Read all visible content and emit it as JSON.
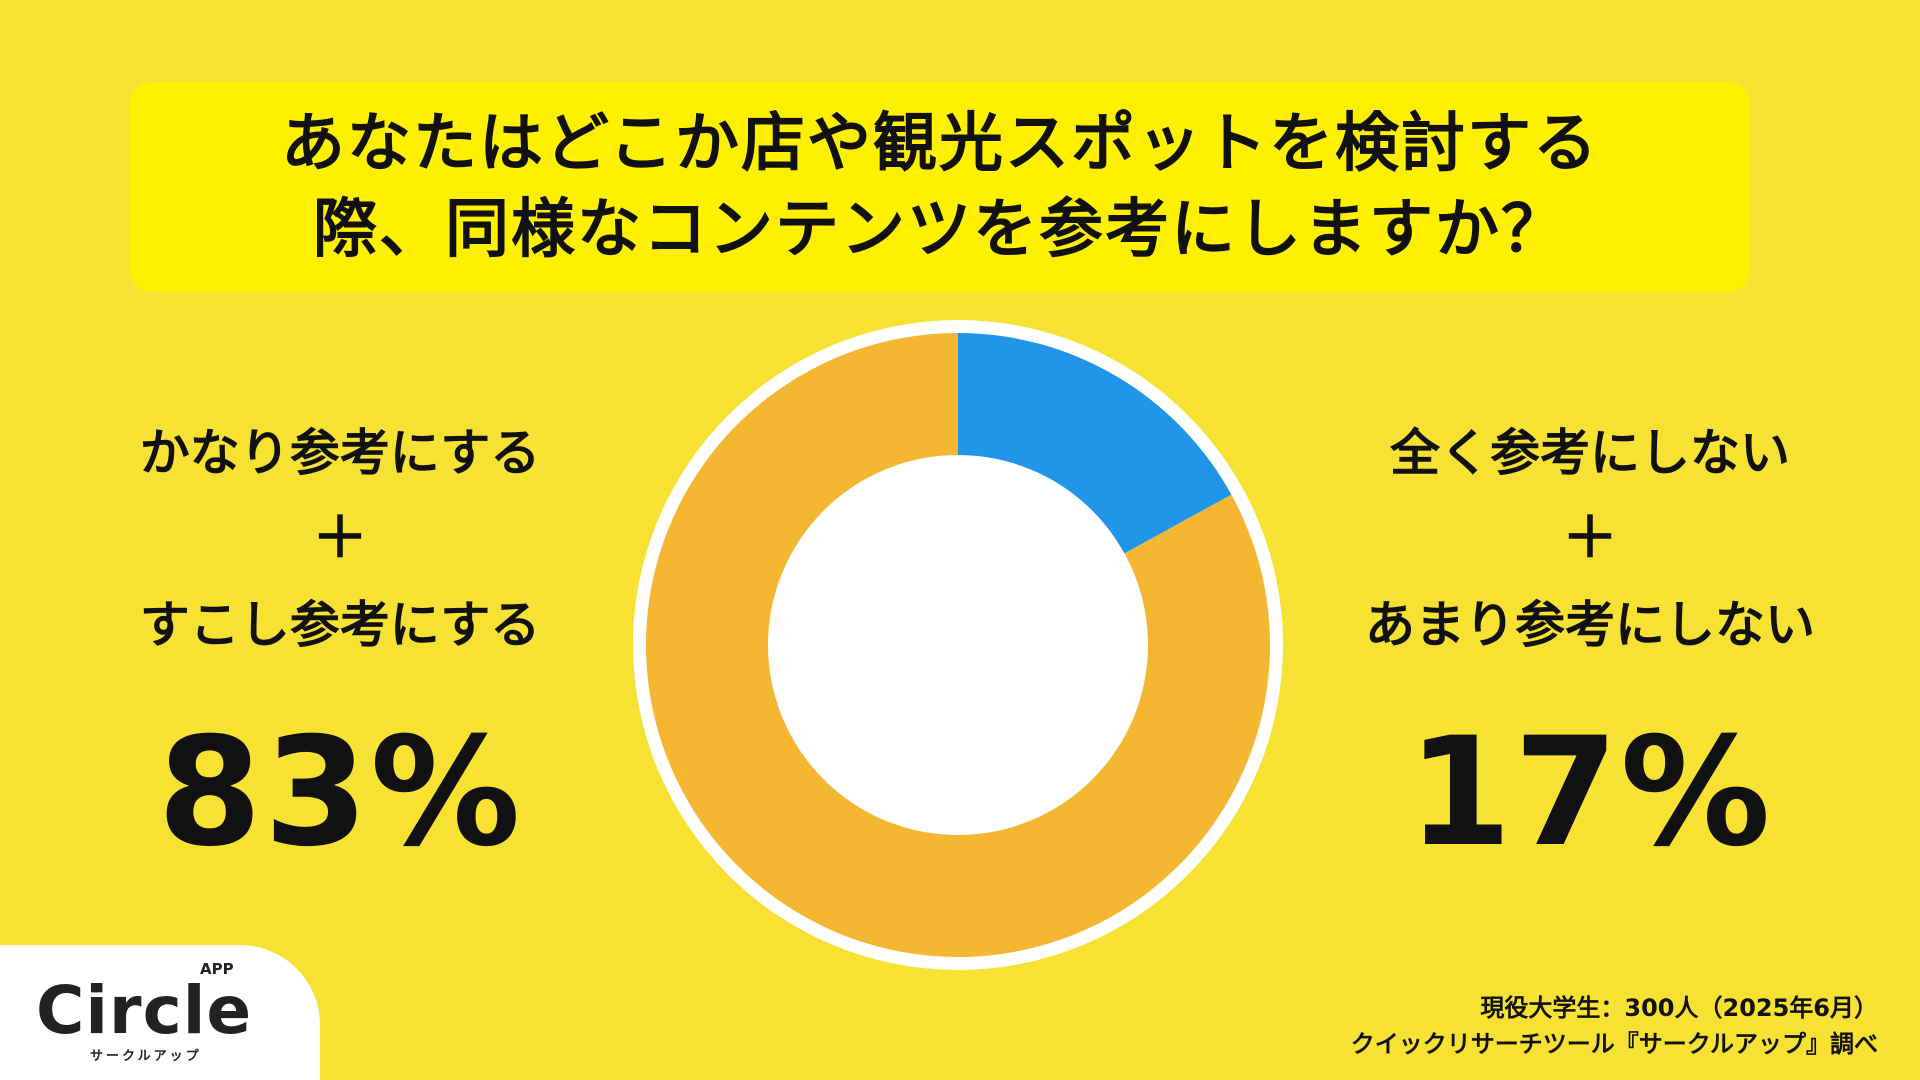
{
  "title_lines": [
    "あなたはどこか店や観光スポットを検討する",
    "際、同様なコンテンツを参考にしますか？"
  ],
  "left_group": {
    "line1": "かなり参考にする",
    "plus": "＋",
    "line2": "すこし参考にする",
    "percent": "83%"
  },
  "right_group": {
    "line1": "全く参考にしない",
    "plus": "＋",
    "line2": "あまり参考にしない",
    "percent": "17%"
  },
  "colors": {
    "background": "#f7e132",
    "title_box": "#fff000",
    "slice_use": "#f5b731",
    "slice_not_use": "#2196e8",
    "ring_border": "#ffffff"
  },
  "chart_data": {
    "type": "pie",
    "style": "donut",
    "title": "あなたはどこか店や観光スポットを検討する際、同様なコンテンツを参考にしますか？",
    "slices": [
      {
        "label": "全く参考にしない＋あまり参考にしない",
        "value": 17,
        "color": "#2196e8"
      },
      {
        "label": "かなり参考にする＋すこし参考にする",
        "value": 83,
        "color": "#f5b731"
      }
    ],
    "start": "top",
    "direction": "clockwise"
  },
  "logo": {
    "name": "Circle",
    "superscript": "APP",
    "subtitle": "サークルアップ"
  },
  "source_lines": [
    "現役大学生：300人（2025年6月）",
    "クイックリサーチツール『サークルアップ』調べ"
  ]
}
